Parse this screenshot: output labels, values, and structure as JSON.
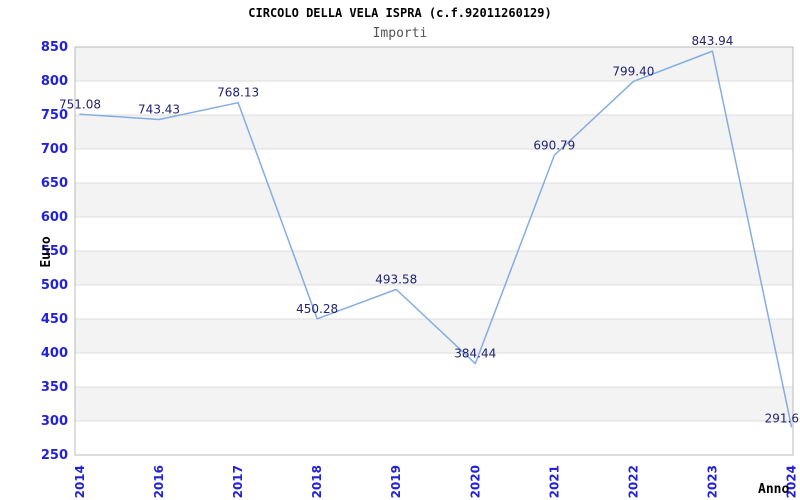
{
  "header": {
    "title": "CIRCOLO DELLA VELA ISPRA (c.f.92011260129)",
    "subtitle": "Importi"
  },
  "chart_data": {
    "type": "line",
    "title": "CIRCOLO DELLA VELA ISPRA (c.f.92011260129)",
    "subtitle": "Importi",
    "xlabel": "Anno",
    "ylabel": "Euro",
    "categories": [
      "2014",
      "2016",
      "2017",
      "2018",
      "2019",
      "2020",
      "2021",
      "2022",
      "2023",
      "2024"
    ],
    "values": [
      751.08,
      743.43,
      768.13,
      450.28,
      493.58,
      384.44,
      690.79,
      799.4,
      843.94,
      291.6
    ],
    "point_labels": [
      "751.08",
      "743.43",
      "768.13",
      "450.28",
      "493.58",
      "384.44",
      "690.79",
      "799.40",
      "843.94",
      "291.6"
    ],
    "ylim": [
      250,
      850
    ],
    "ytick_step": 50,
    "ytick_labels": [
      "250",
      "300",
      "350",
      "400",
      "450",
      "500",
      "550",
      "600",
      "650",
      "700",
      "750",
      "800",
      "850"
    ],
    "grid": true,
    "legend_position": "none",
    "banded_background": true
  },
  "colors": {
    "line": "#85ADE2",
    "tick_label": "#2222D6",
    "point_label": "#222270",
    "band_fill": "#F3F3F3",
    "gridline": "#DCDCDC",
    "plot_border": "#BBBBBB",
    "title": "#000000",
    "subtitle": "#555555",
    "axis_title": "#000000",
    "background": "#FFFFFF"
  }
}
